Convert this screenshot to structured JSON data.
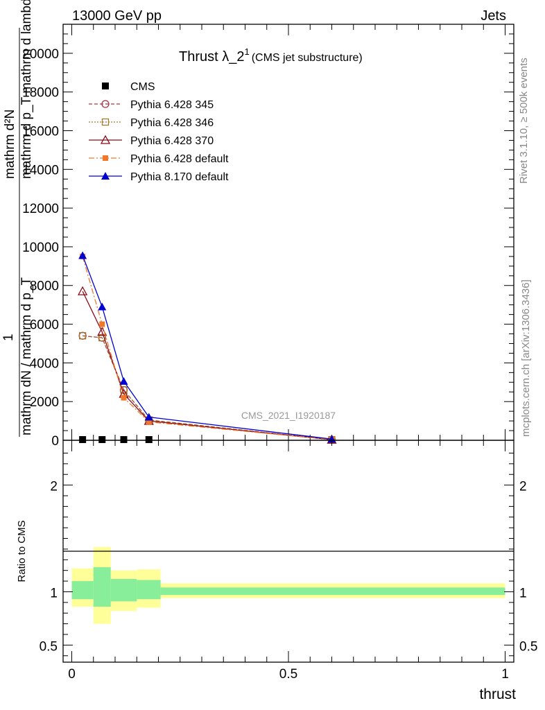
{
  "header": {
    "energy_label": "13000 GeV pp",
    "category_label": "Jets"
  },
  "side_labels": {
    "rivet": "Rivet 3.1.10, ≥ 500k events",
    "mcplots": "mcplots.cern.ch [arXiv:1306.3436]"
  },
  "main_plot": {
    "title_main": "Thrust λ_2",
    "title_sup": "1",
    "title_sub": "(CMS jet substructure)",
    "analysis_id": "CMS_2021_I1920187",
    "ylabel_numerator": "mathrm d²N",
    "ylabel_numerator_line2": "mathrm d p_T mathrm d lambda",
    "ylabel_one": "1",
    "ylabel_denominator": "mathrm dN / mathrm d p_T"
  },
  "ratio_plot": {
    "ylabel": "Ratio to CMS",
    "xlabel": "thrust"
  },
  "colors": {
    "cms": "#000000",
    "p345": "#b03040",
    "p346": "#a07830",
    "p370": "#8b0a14",
    "p6def": "#f07828",
    "p8def": "#0000d0",
    "band_yellow": "#ffff99",
    "band_green": "#88ee99"
  },
  "chart_data": {
    "type": "line",
    "xlabel": "thrust",
    "ylabel": "1 / (dN/dp_T) d²N/dp_T dλ",
    "xlim": [
      -0.02,
      1.02
    ],
    "ylim": [
      0,
      21500
    ],
    "yticks": [
      0,
      2000,
      4000,
      6000,
      8000,
      10000,
      12000,
      14000,
      16000,
      18000,
      20000
    ],
    "yticklabels": [
      "0",
      "2000",
      "4000",
      "6000",
      "8000",
      "10000",
      "12000",
      "14000",
      "16000",
      "18000",
      "20000"
    ],
    "xticks": [
      0,
      0.5,
      1
    ],
    "xticklabels": [
      "0",
      "0.5",
      "1"
    ],
    "legend_position": "top-left",
    "series": [
      {
        "name": "CMS",
        "key": "cms",
        "x": [
          0.025,
          0.07,
          0.12,
          0.178,
          0.6
        ],
        "y": [
          0,
          0,
          0,
          0,
          0
        ]
      },
      {
        "name": "Pythia 6.428 345",
        "key": "p345",
        "x": [
          0.025,
          0.07,
          0.12,
          0.178,
          0.6
        ],
        "y": [
          5400,
          5300,
          2600,
          1050,
          30
        ]
      },
      {
        "name": "Pythia 6.428 346",
        "key": "p346",
        "x": [
          0.025,
          0.07,
          0.12,
          0.178,
          0.6
        ],
        "y": [
          5400,
          5300,
          2600,
          1050,
          30
        ]
      },
      {
        "name": "Pythia 6.428 370",
        "key": "p370",
        "x": [
          0.025,
          0.07,
          0.12,
          0.178,
          0.6
        ],
        "y": [
          7700,
          5600,
          2400,
          1000,
          30
        ]
      },
      {
        "name": "Pythia 6.428 default",
        "key": "p6def",
        "x": [
          0.025,
          0.07,
          0.12,
          0.178,
          0.6
        ],
        "y": [
          9500,
          6000,
          2200,
          950,
          30
        ]
      },
      {
        "name": "Pythia 8.170 default",
        "key": "p8def",
        "x": [
          0.025,
          0.07,
          0.12,
          0.178,
          0.6
        ],
        "y": [
          9550,
          6900,
          3050,
          1200,
          60
        ]
      }
    ],
    "ratio": {
      "ylim": [
        0.34,
        2.42
      ],
      "yticks": [
        0.5,
        1,
        2
      ],
      "yticklabels": [
        "0.5",
        "1",
        "2"
      ],
      "bins": [
        {
          "x0": 0.0,
          "x1": 0.05,
          "yellow": [
            0.86,
            1.22
          ],
          "green": [
            0.93,
            1.1
          ]
        },
        {
          "x0": 0.05,
          "x1": 0.09,
          "yellow": [
            0.7,
            1.42
          ],
          "green": [
            0.86,
            1.23
          ]
        },
        {
          "x0": 0.09,
          "x1": 0.15,
          "yellow": [
            0.82,
            1.2
          ],
          "green": [
            0.91,
            1.12
          ]
        },
        {
          "x0": 0.15,
          "x1": 0.205,
          "yellow": [
            0.85,
            1.21
          ],
          "green": [
            0.93,
            1.11
          ]
        },
        {
          "x0": 0.205,
          "x1": 1.0,
          "yellow": [
            0.94,
            1.08
          ],
          "green": [
            0.97,
            1.04
          ]
        }
      ]
    }
  }
}
